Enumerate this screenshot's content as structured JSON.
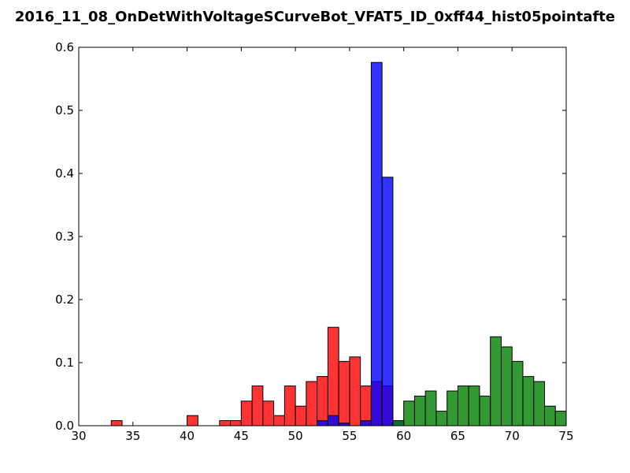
{
  "chart_data": {
    "type": "bar",
    "title": "2016_11_08_OnDetWithVoltageSCurveBot_VFAT5_ID_0xff44_hist05pointafte",
    "xlabel": "",
    "ylabel": "",
    "xlim": [
      30,
      75
    ],
    "ylim": [
      0,
      0.6
    ],
    "x_ticks": [
      "30",
      "35",
      "40",
      "45",
      "50",
      "55",
      "60",
      "65",
      "70",
      "75"
    ],
    "y_ticks": [
      "0.0",
      "0.1",
      "0.2",
      "0.3",
      "0.4",
      "0.5",
      "0.6"
    ],
    "grid": false,
    "bin_width": 1,
    "series": [
      {
        "color": "#ff0000",
        "bin_starts": [
          33,
          40,
          43,
          44,
          45,
          46,
          47,
          48,
          49,
          50,
          51,
          52,
          53,
          54,
          55,
          56,
          57,
          58
        ],
        "values": [
          0.008,
          0.016,
          0.008,
          0.008,
          0.039,
          0.063,
          0.039,
          0.016,
          0.063,
          0.031,
          0.07,
          0.078,
          0.156,
          0.102,
          0.109,
          0.063,
          0.07,
          0.063
        ]
      },
      {
        "color": "#0000ff",
        "bin_starts": [
          52,
          53,
          54,
          56,
          57,
          58,
          59
        ],
        "values": [
          0.008,
          0.016,
          0.004,
          0.008,
          0.576,
          0.394,
          0.008
        ]
      },
      {
        "color": "#008000",
        "bin_starts": [
          59,
          60,
          61,
          62,
          63,
          64,
          65,
          66,
          67,
          68,
          69,
          70,
          71,
          72,
          73,
          74
        ],
        "values": [
          0.008,
          0.039,
          0.047,
          0.055,
          0.023,
          0.055,
          0.063,
          0.063,
          0.047,
          0.141,
          0.125,
          0.102,
          0.078,
          0.07,
          0.031,
          0.023
        ]
      }
    ]
  }
}
